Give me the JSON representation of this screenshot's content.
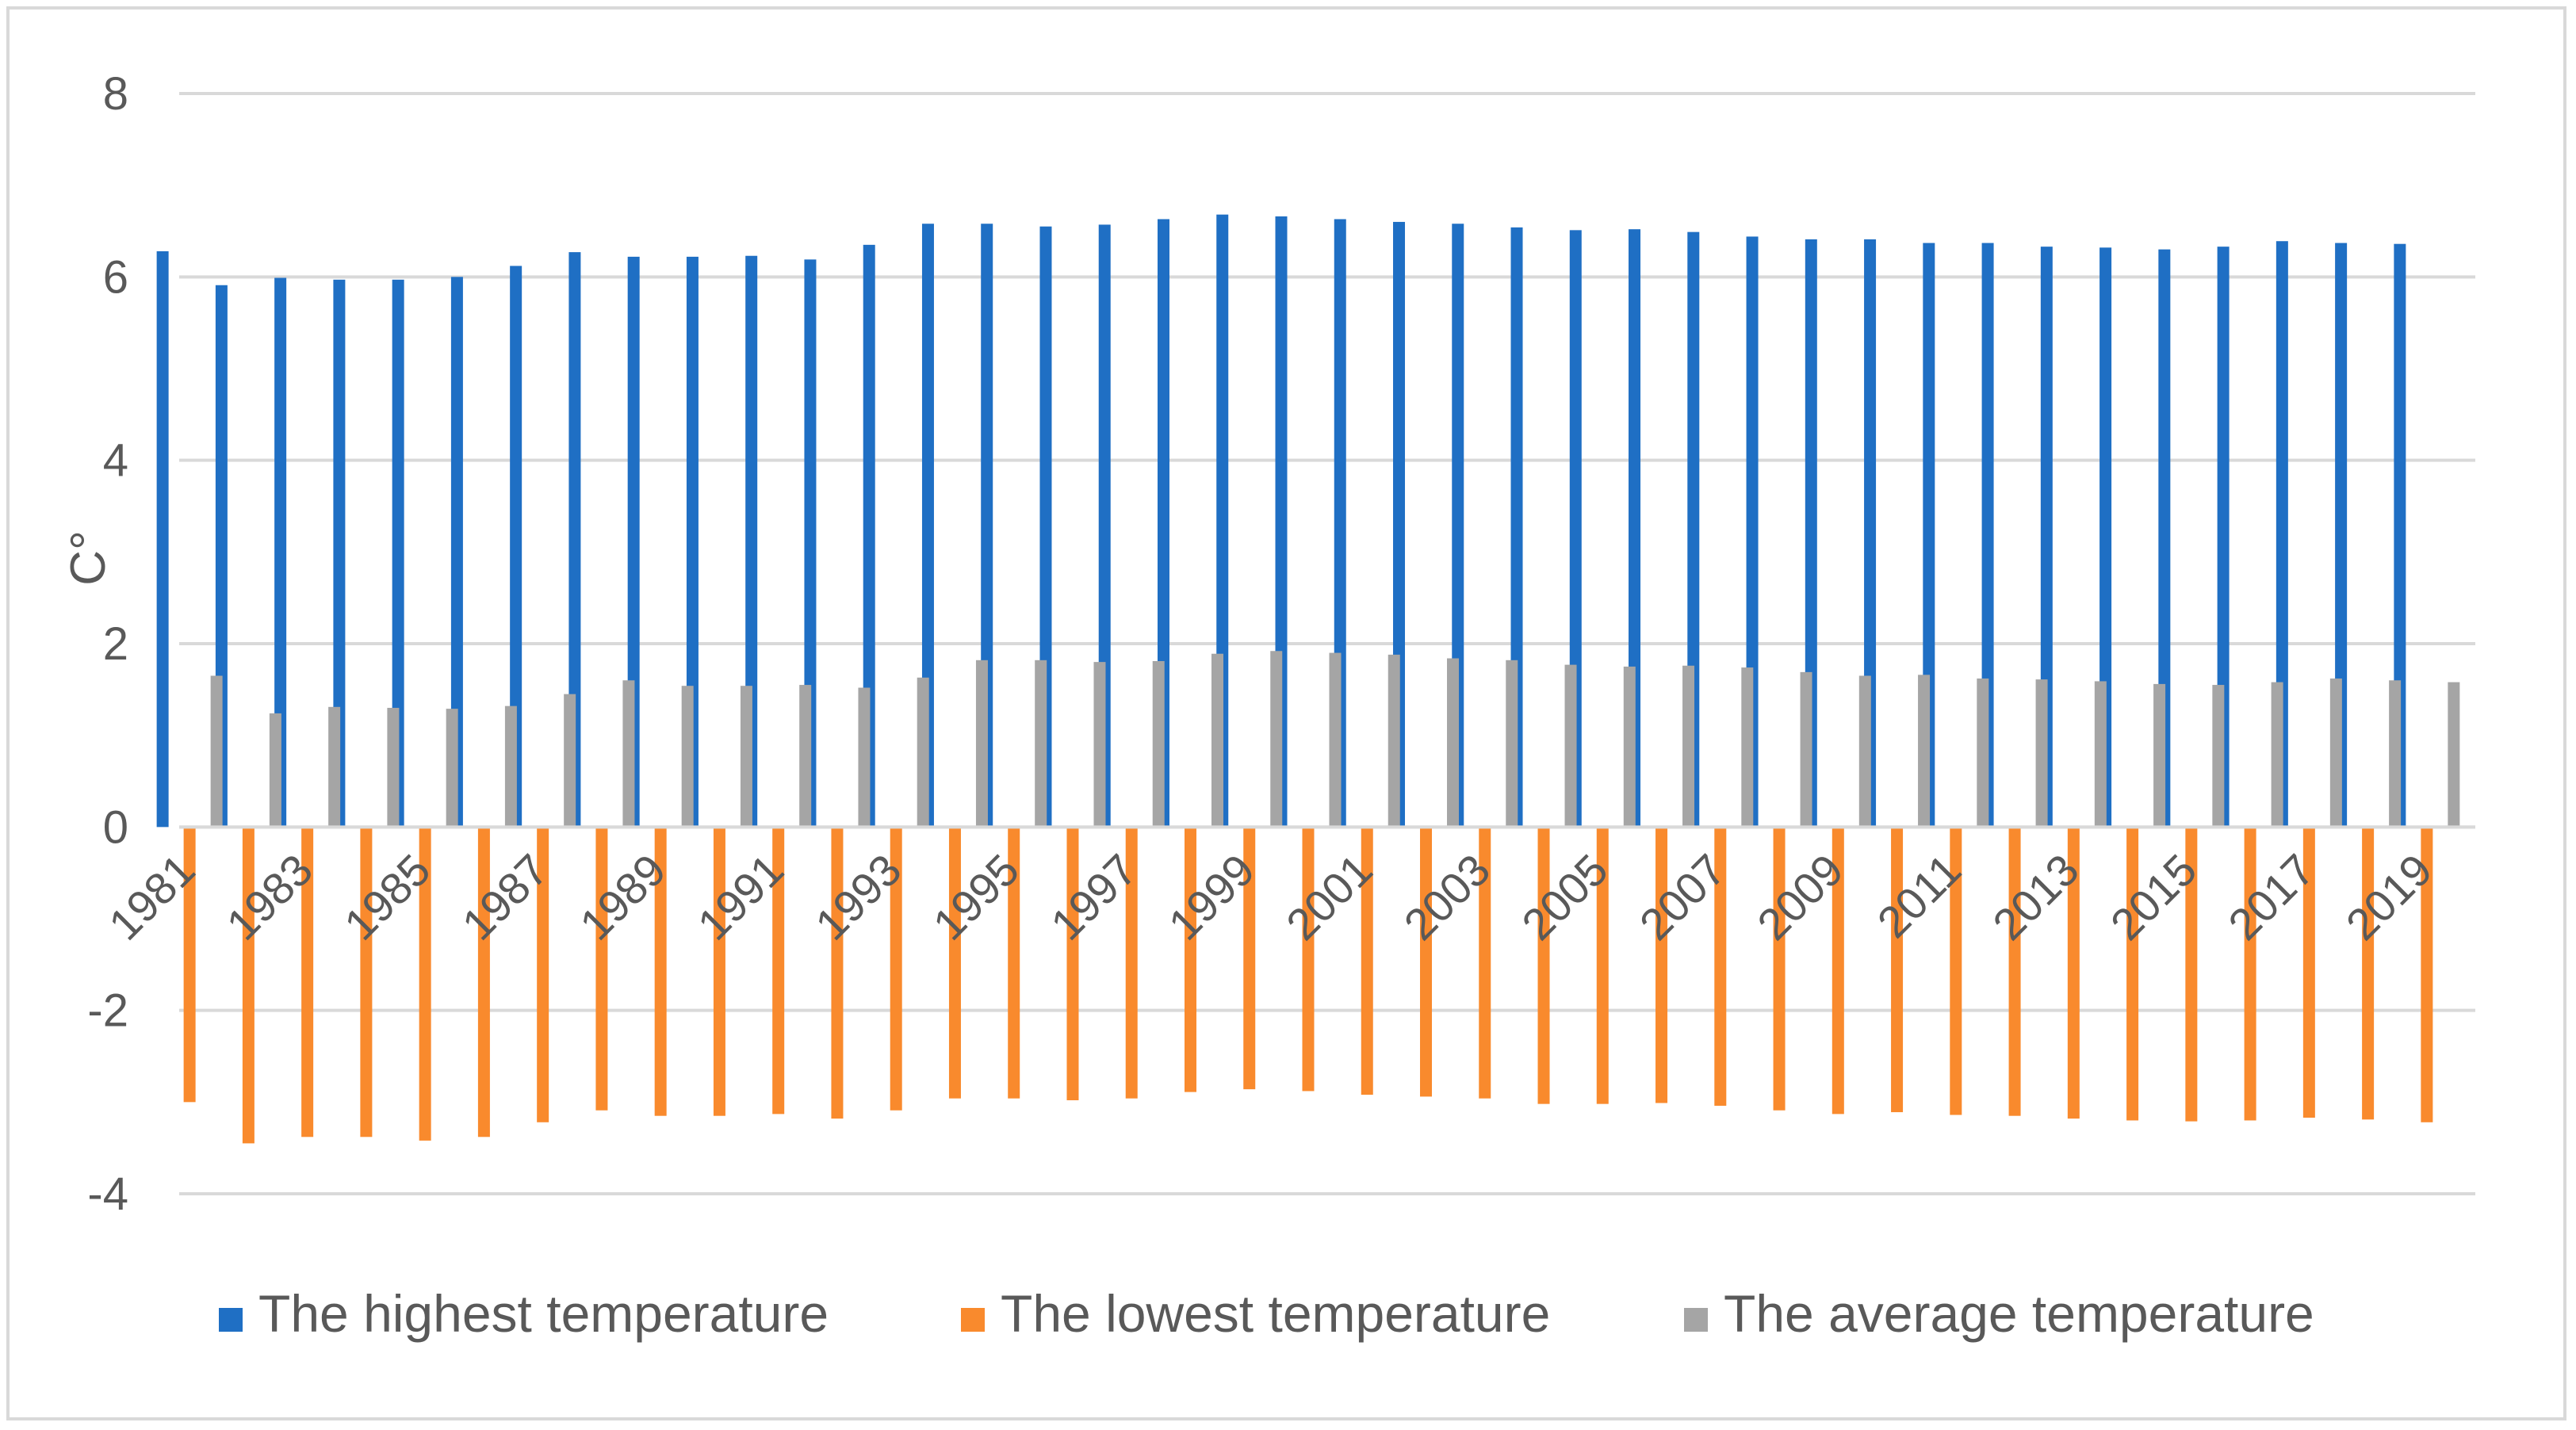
{
  "chart_data": {
    "type": "bar",
    "title": "",
    "xlabel": "",
    "ylabel": "C°",
    "ylim": [
      -4,
      8
    ],
    "yticks": [
      8,
      6,
      4,
      2,
      0,
      -2,
      -4
    ],
    "grid": true,
    "legend_position": "bottom",
    "categories": [
      "1981",
      "1982",
      "1983",
      "1984",
      "1985",
      "1986",
      "1987",
      "1988",
      "1989",
      "1990",
      "1991",
      "1992",
      "1993",
      "1994",
      "1995",
      "1996",
      "1997",
      "1998",
      "1999",
      "2000",
      "2001",
      "2002",
      "2003",
      "2004",
      "2005",
      "2006",
      "2007",
      "2008",
      "2009",
      "2010",
      "2011",
      "2012",
      "2013",
      "2014",
      "2015",
      "2016",
      "2017",
      "2018",
      "2019"
    ],
    "tick_labels": [
      "1981",
      "1983",
      "1985",
      "1987",
      "1989",
      "1991",
      "1993",
      "1995",
      "1997",
      "1999",
      "2001",
      "2003",
      "2005",
      "2007",
      "2009",
      "2011",
      "2013",
      "2015",
      "2017",
      "2019"
    ],
    "series": [
      {
        "name": "The highest temperature",
        "color": "#1f6fc4",
        "values": [
          6.28,
          5.91,
          5.99,
          5.97,
          5.97,
          6.0,
          6.12,
          6.27,
          6.22,
          6.22,
          6.23,
          6.19,
          6.35,
          6.58,
          6.58,
          6.55,
          6.57,
          6.63,
          6.68,
          6.66,
          6.63,
          6.6,
          6.58,
          6.54,
          6.51,
          6.52,
          6.49,
          6.44,
          6.41,
          6.41,
          6.37,
          6.37,
          6.33,
          6.32,
          6.3,
          6.33,
          6.39,
          6.37,
          6.36
        ]
      },
      {
        "name": "The lowest temperature",
        "color": "#f98a2d",
        "values": [
          -3.0,
          -3.45,
          -3.38,
          -3.38,
          -3.42,
          -3.38,
          -3.22,
          -3.09,
          -3.15,
          -3.15,
          -3.13,
          -3.18,
          -3.09,
          -2.96,
          -2.96,
          -2.98,
          -2.96,
          -2.89,
          -2.86,
          -2.88,
          -2.92,
          -2.94,
          -2.96,
          -3.02,
          -3.02,
          -3.01,
          -3.04,
          -3.09,
          -3.13,
          -3.11,
          -3.14,
          -3.15,
          -3.18,
          -3.2,
          -3.21,
          -3.2,
          -3.17,
          -3.19,
          -3.22
        ]
      },
      {
        "name": "The average temperature",
        "color": "#a5a5a5",
        "values": [
          1.65,
          1.24,
          1.31,
          1.3,
          1.29,
          1.32,
          1.45,
          1.6,
          1.54,
          1.54,
          1.55,
          1.52,
          1.63,
          1.82,
          1.82,
          1.8,
          1.81,
          1.89,
          1.92,
          1.9,
          1.88,
          1.84,
          1.82,
          1.77,
          1.75,
          1.76,
          1.74,
          1.69,
          1.65,
          1.66,
          1.62,
          1.61,
          1.59,
          1.56,
          1.55,
          1.58,
          1.62,
          1.6,
          1.58
        ]
      }
    ]
  }
}
